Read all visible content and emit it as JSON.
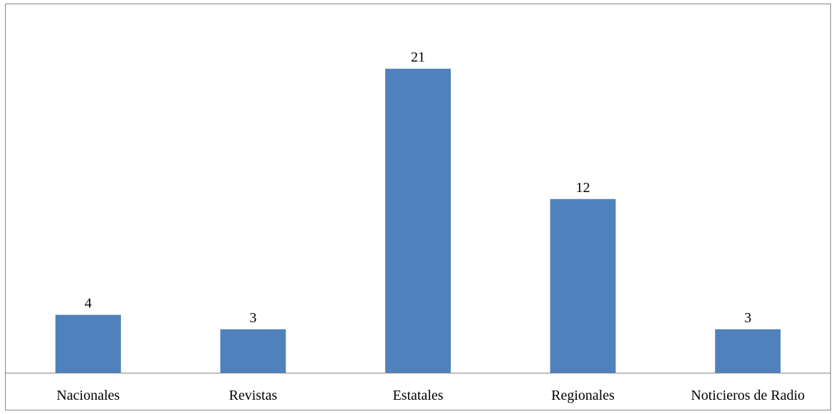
{
  "chart_data": {
    "type": "bar",
    "categories": [
      "Nacionales",
      "Revistas",
      "Estatales",
      "Regionales",
      "Noticieros de Radio"
    ],
    "values": [
      4,
      3,
      21,
      12,
      3
    ],
    "data_labels": [
      "4",
      "3",
      "21",
      "12",
      "3"
    ],
    "title": "",
    "xlabel": "",
    "ylabel": "",
    "ylim": [
      0,
      25
    ],
    "grid": false,
    "legend": "none",
    "colors": {
      "bar": "#4F81BD",
      "axis": "#868686",
      "frame": "#868686"
    }
  }
}
